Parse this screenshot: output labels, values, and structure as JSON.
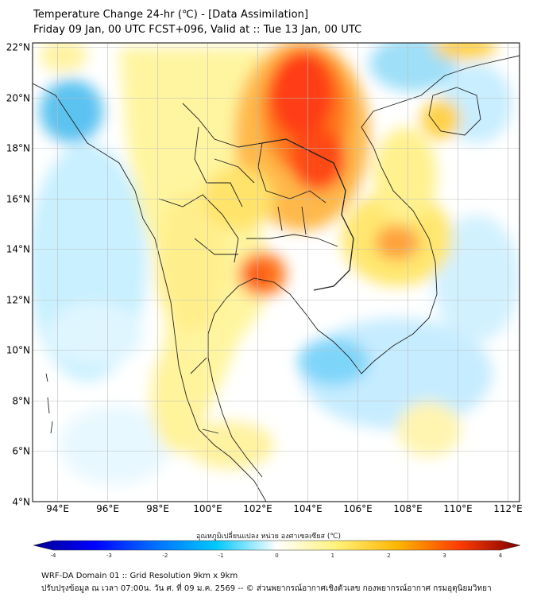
{
  "title": {
    "line1": "Temperature Change 24-hr (℃) - [Data Assimilation]",
    "line2": "Friday 09 Jan, 00 UTC FCST+096, Valid at :: Tue 13 Jan, 00 UTC"
  },
  "map": {
    "lon_range": [
      93,
      112.5
    ],
    "lat_range": [
      4,
      22.2
    ],
    "lon_ticks": [
      {
        "value": 94,
        "label": "94°E"
      },
      {
        "value": 96,
        "label": "96°E"
      },
      {
        "value": 98,
        "label": "98°E"
      },
      {
        "value": 100,
        "label": "100°E"
      },
      {
        "value": 102,
        "label": "102°E"
      },
      {
        "value": 104,
        "label": "104°E"
      },
      {
        "value": 106,
        "label": "106°E"
      },
      {
        "value": 108,
        "label": "108°E"
      },
      {
        "value": 110,
        "label": "110°E"
      },
      {
        "value": 112,
        "label": "112°E"
      }
    ],
    "lat_ticks": [
      {
        "value": 22,
        "label": "22°N"
      },
      {
        "value": 20,
        "label": "20°N"
      },
      {
        "value": 18,
        "label": "18°N"
      },
      {
        "value": 16,
        "label": "16°N"
      },
      {
        "value": 14,
        "label": "14°N"
      },
      {
        "value": 12,
        "label": "12°N"
      },
      {
        "value": 10,
        "label": "10°N"
      },
      {
        "value": 8,
        "label": "8°N"
      },
      {
        "value": 6,
        "label": "6°N"
      },
      {
        "value": 4,
        "label": "4°N"
      }
    ]
  },
  "colorbar": {
    "label": "อุณหภูมิเปลี่ยนแปลง หน่วย องศาเซลเซียส (℃)",
    "min": -4,
    "max": 4,
    "ticks": [
      "-4",
      "-3",
      "-2",
      "-1",
      "0",
      "1",
      "2",
      "3",
      "4"
    ],
    "colors": [
      "#000090",
      "#0000ff",
      "#0070ff",
      "#00c8ff",
      "#ffffff",
      "#fff278",
      "#ffb400",
      "#ff3c00",
      "#800000"
    ]
  },
  "footer": {
    "line1": "WRF-DA Domain 01 :: Grid Resolution 9km x 9km",
    "line2": "ปรับปรุงข้อมูล ณ เวลา 07:00น. วัน ศ. ที่ 09 ม.ค. 2569 -- © ส่วนพยากรณ์อากาศเชิงตัวเลข กองพยากรณ์อากาศ กรมอุตุนิยมวิทยา"
  }
}
